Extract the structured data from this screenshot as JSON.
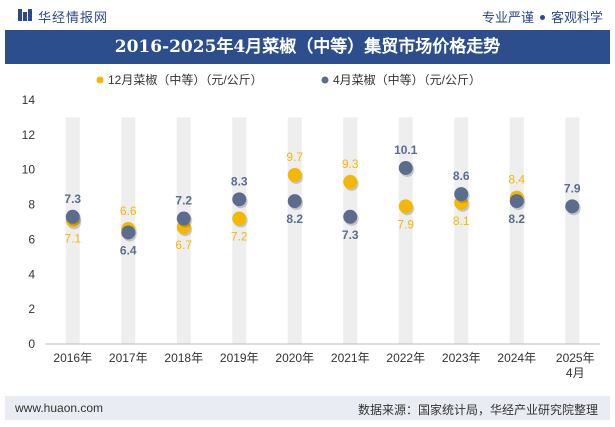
{
  "header": {
    "brand": "华经情报网",
    "tagline_left": "专业严谨",
    "tagline_right": "客观科学"
  },
  "title": "2016-2025年4月菜椒（中等）集贸市场价格走势",
  "footer": {
    "website": "www.huaon.com",
    "source": "数据来源：国家统计局，华经产业研究院整理"
  },
  "colors": {
    "title_bg": "#2c4e8c",
    "series_dec": "#f5b800",
    "series_apr": "#5b6d8f",
    "band": "#eeeeee",
    "footer_bg": "#e9ecf2"
  },
  "chart_data": {
    "type": "scatter",
    "categories": [
      "2016年",
      "2017年",
      "2018年",
      "2019年",
      "2020年",
      "2021年",
      "2022年",
      "2023年",
      "2024年",
      "2025年4月"
    ],
    "ylim": [
      0,
      14
    ],
    "yticks": [
      0,
      2,
      4,
      6,
      8,
      10,
      12,
      14
    ],
    "legend_position": "top-center",
    "series": [
      {
        "name": "12月菜椒（中等）（元/公斤）",
        "color": "#f5b800",
        "values": [
          7.1,
          6.6,
          6.7,
          7.2,
          9.7,
          9.3,
          7.9,
          8.1,
          8.4,
          null
        ]
      },
      {
        "name": "4月菜椒（中等）（元/公斤）",
        "color": "#5b6d8f",
        "values": [
          7.3,
          6.4,
          7.2,
          8.3,
          8.2,
          7.3,
          10.1,
          8.6,
          8.2,
          7.9
        ]
      }
    ]
  }
}
